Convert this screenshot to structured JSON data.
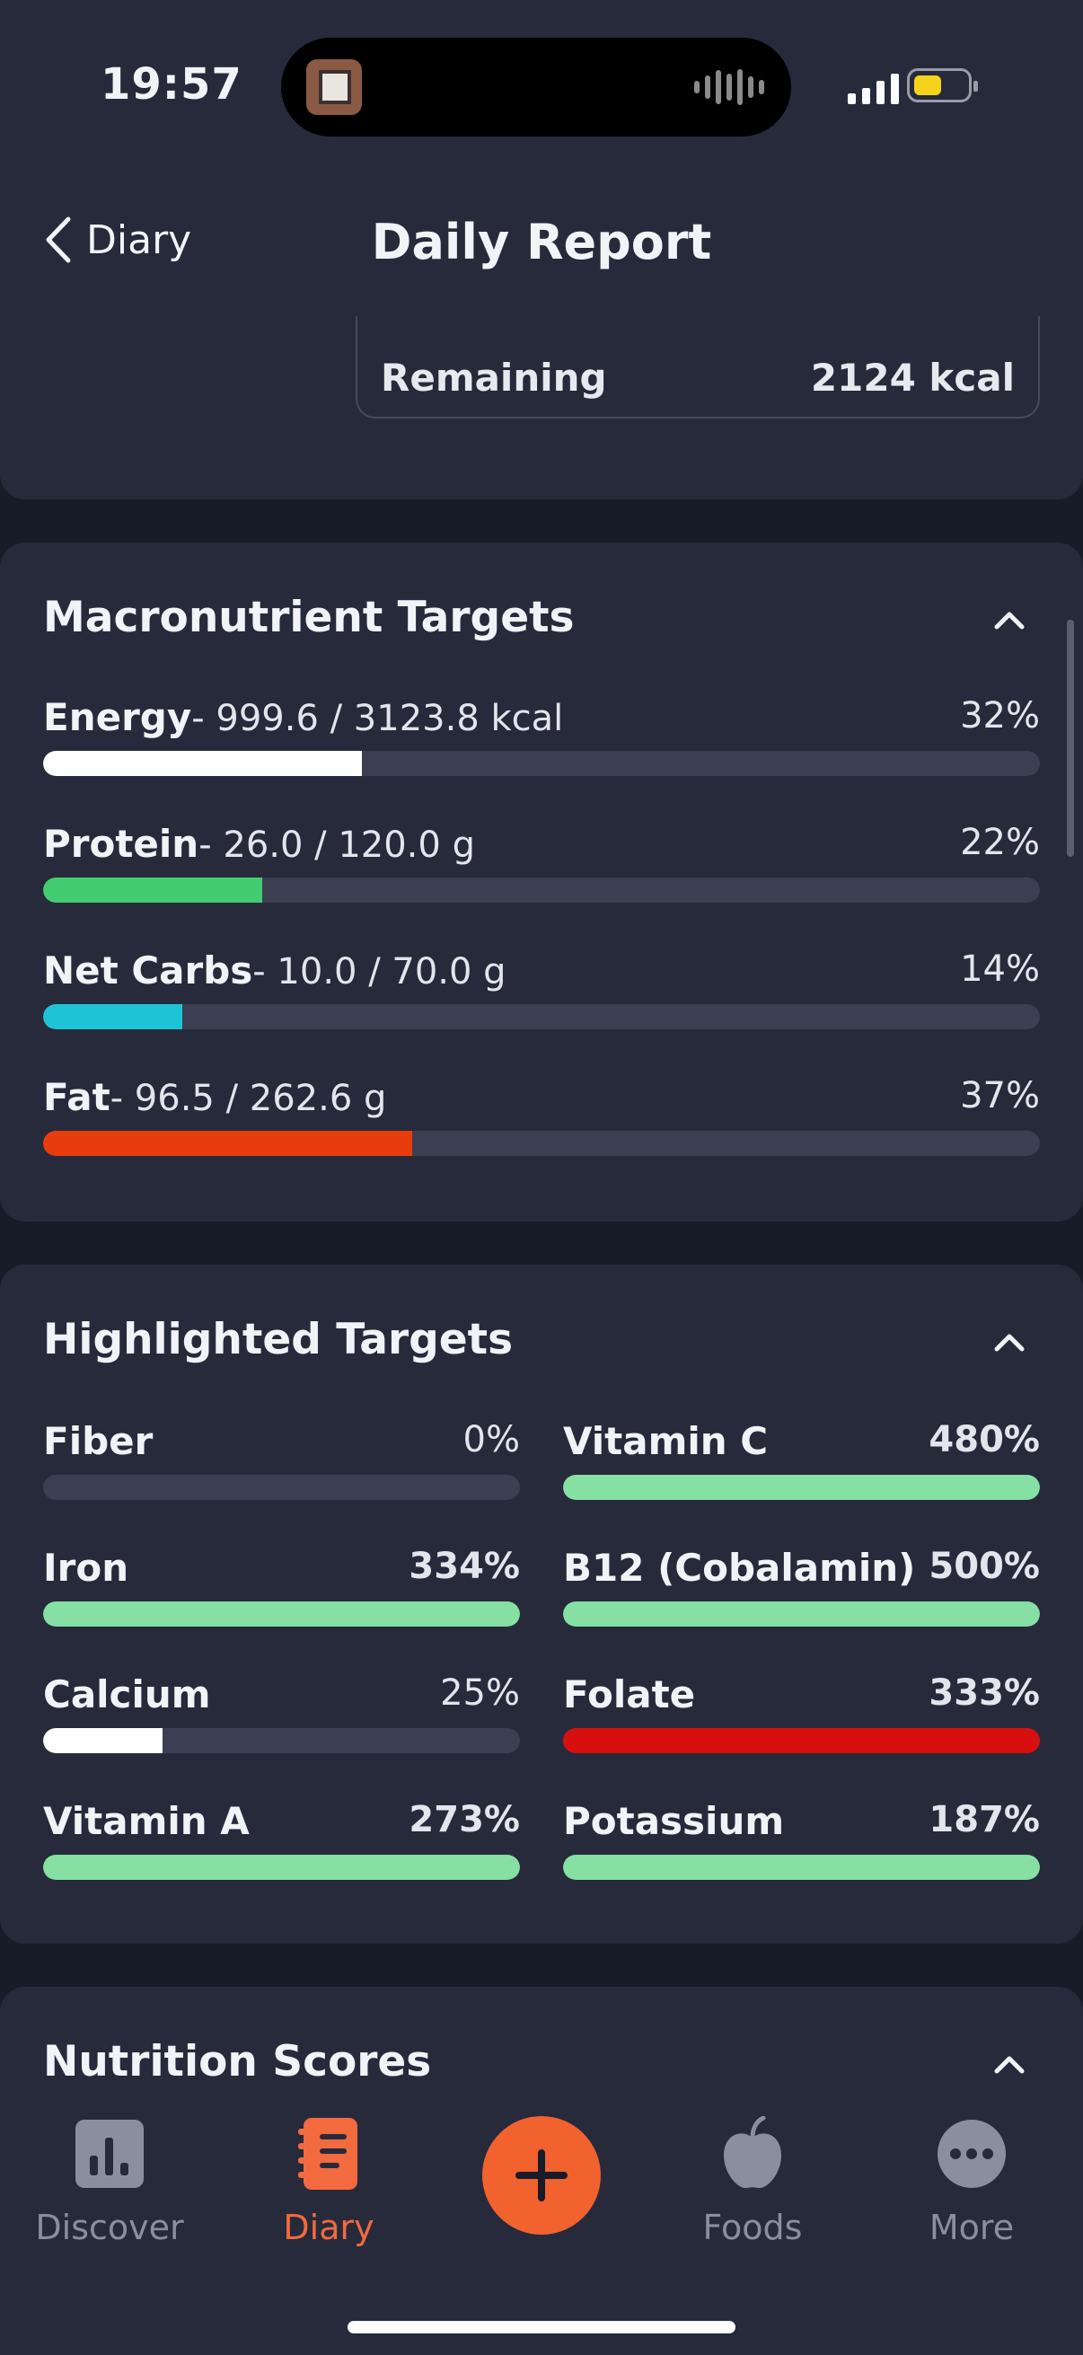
{
  "status_bar": {
    "time": "19:57"
  },
  "header": {
    "back_label": "Diary",
    "title": "Daily Report"
  },
  "summary": {
    "remaining_label": "Remaining",
    "remaining_value": "2124 kcal"
  },
  "macros": {
    "title": "Macronutrient Targets",
    "items": [
      {
        "name": "Energy",
        "values": "- 999.6 / 3123.8 kcal",
        "percent": "32%",
        "fraction": 0.32,
        "color": "#ffffff"
      },
      {
        "name": "Protein",
        "values": "- 26.0 / 120.0 g",
        "percent": "22%",
        "fraction": 0.22,
        "color": "#44cc72"
      },
      {
        "name": "Net Carbs",
        "values": "- 10.0 / 70.0 g",
        "percent": "14%",
        "fraction": 0.14,
        "color": "#1ec4d6"
      },
      {
        "name": "Fat",
        "values": "- 96.5 / 262.6 g",
        "percent": "37%",
        "fraction": 0.37,
        "color": "#e93c0c"
      }
    ]
  },
  "highlighted": {
    "title": "Highlighted Targets",
    "items": [
      {
        "name": "Fiber",
        "percent": "0%",
        "fraction": 0.0,
        "color": "#3c3f52"
      },
      {
        "name": "Vitamin C",
        "percent": "480%",
        "fraction": 1.0,
        "color": "#86dfa3"
      },
      {
        "name": "Iron",
        "percent": "334%",
        "fraction": 1.0,
        "color": "#86dfa3"
      },
      {
        "name": "B12 (Cobalamin)",
        "percent": "500%",
        "fraction": 1.0,
        "color": "#86dfa3"
      },
      {
        "name": "Calcium",
        "percent": "25%",
        "fraction": 0.25,
        "color": "#ffffff"
      },
      {
        "name": "Folate",
        "percent": "333%",
        "fraction": 1.0,
        "color": "#d70f0f"
      },
      {
        "name": "Vitamin A",
        "percent": "273%",
        "fraction": 1.0,
        "color": "#86dfa3"
      },
      {
        "name": "Potassium",
        "percent": "187%",
        "fraction": 1.0,
        "color": "#86dfa3"
      }
    ]
  },
  "nutrition_scores": {
    "title": "Nutrition Scores"
  },
  "tabs": [
    {
      "label": "Discover",
      "icon": "bar-chart-icon"
    },
    {
      "label": "Diary",
      "icon": "diary-icon"
    },
    {
      "label": "Foods",
      "icon": "apple-icon"
    },
    {
      "label": "More",
      "icon": "more-icon"
    }
  ],
  "colors": {
    "accent": "#f2622f",
    "card": "#272a3b",
    "background": "#181b28"
  }
}
